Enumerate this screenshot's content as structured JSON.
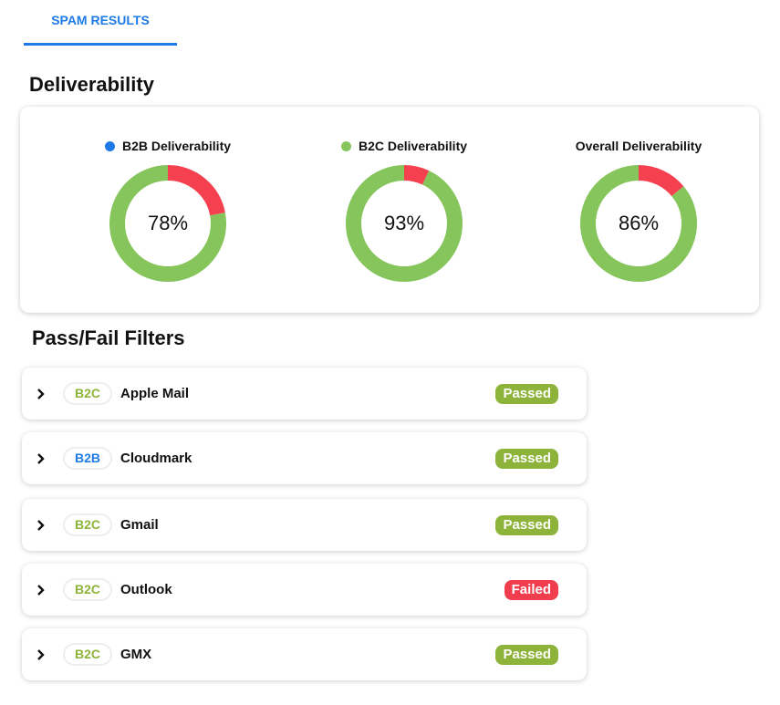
{
  "tab": {
    "label": "SPAM RESULTS"
  },
  "deliverability": {
    "heading": "Deliverability",
    "charts": [
      {
        "title": "B2B Deliverability",
        "value": 78,
        "label": "78%",
        "legend_color": "#1e7be6"
      },
      {
        "title": "B2C Deliverability",
        "value": 93,
        "label": "93%",
        "legend_color": "#86c45c"
      },
      {
        "title": "Overall Deliverability",
        "value": 86,
        "label": "86%",
        "legend_color": null
      }
    ],
    "colors": {
      "pass": "#86c45c",
      "fail": "#f5414f"
    }
  },
  "filters": {
    "heading": "Pass/Fail Filters",
    "items": [
      {
        "tag": "B2C",
        "name": "Apple Mail",
        "status": "Passed"
      },
      {
        "tag": "B2B",
        "name": "Cloudmark",
        "status": "Passed"
      },
      {
        "tag": "B2C",
        "name": "Gmail",
        "status": "Passed"
      },
      {
        "tag": "B2C",
        "name": "Outlook",
        "status": "Failed"
      },
      {
        "tag": "B2C",
        "name": "GMX",
        "status": "Passed"
      }
    ],
    "colors": {
      "B2C": "#8db33a",
      "B2B": "#1e7be6",
      "Passed": "#8db33a",
      "Failed": "#f03e4e"
    }
  }
}
